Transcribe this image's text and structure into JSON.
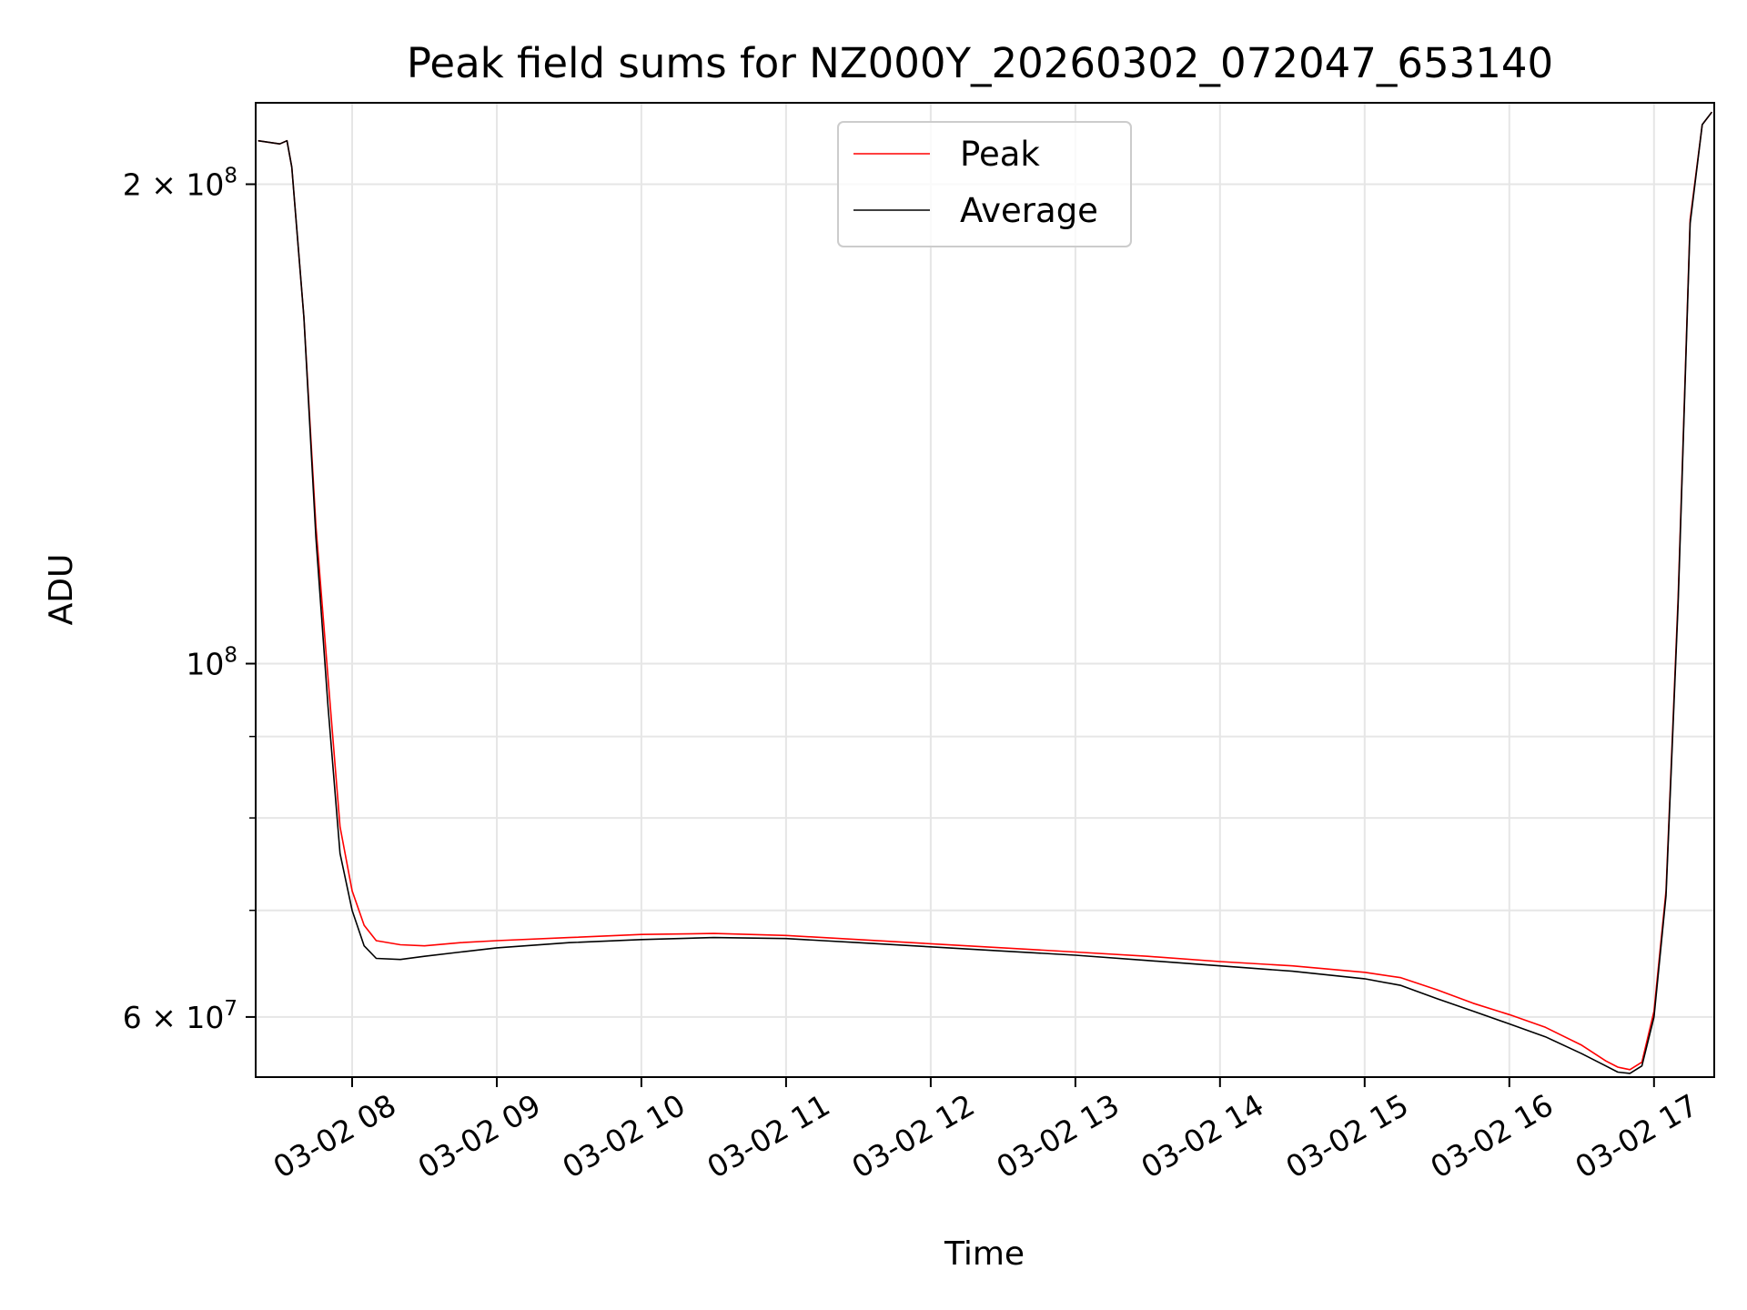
{
  "chart_data": {
    "type": "line",
    "title": "Peak field sums for NZ000Y_20260302_072047_653140",
    "xlabel": "Time",
    "ylabel": "ADU",
    "yscale": "log",
    "xlim": [
      "2026-03-02 07:20",
      "2026-03-02 17:25"
    ],
    "ylim": [
      55000000,
      225000000
    ],
    "grid": true,
    "legend_position": "top-center",
    "x_ticks": [
      {
        "value": "2026-03-02 08:00",
        "label": "03-02 08"
      },
      {
        "value": "2026-03-02 09:00",
        "label": "03-02 09"
      },
      {
        "value": "2026-03-02 10:00",
        "label": "03-02 10"
      },
      {
        "value": "2026-03-02 11:00",
        "label": "03-02 11"
      },
      {
        "value": "2026-03-02 12:00",
        "label": "03-02 12"
      },
      {
        "value": "2026-03-02 13:00",
        "label": "03-02 13"
      },
      {
        "value": "2026-03-02 14:00",
        "label": "03-02 14"
      },
      {
        "value": "2026-03-02 15:00",
        "label": "03-02 15"
      },
      {
        "value": "2026-03-02 16:00",
        "label": "03-02 16"
      },
      {
        "value": "2026-03-02 17:00",
        "label": "03-02 17"
      }
    ],
    "y_ticks": [
      {
        "value": 60000000,
        "base": "6 × 10",
        "exp": "7"
      },
      {
        "value": 100000000,
        "base": "10",
        "exp": "8"
      },
      {
        "value": 200000000,
        "base": "2 × 10",
        "exp": "8"
      }
    ],
    "y_minor_ticks": [
      70000000,
      80000000,
      90000000
    ],
    "series": [
      {
        "name": "Peak",
        "color": "#ff0000",
        "x": [
          "2026-03-02 07:21",
          "2026-03-02 07:30",
          "2026-03-02 07:33",
          "2026-03-02 07:35",
          "2026-03-02 07:40",
          "2026-03-02 07:45",
          "2026-03-02 07:50",
          "2026-03-02 07:55",
          "2026-03-02 08:00",
          "2026-03-02 08:05",
          "2026-03-02 08:10",
          "2026-03-02 08:20",
          "2026-03-02 08:30",
          "2026-03-02 08:45",
          "2026-03-02 09:00",
          "2026-03-02 09:30",
          "2026-03-02 10:00",
          "2026-03-02 10:30",
          "2026-03-02 11:00",
          "2026-03-02 11:30",
          "2026-03-02 12:00",
          "2026-03-02 12:30",
          "2026-03-02 13:00",
          "2026-03-02 13:30",
          "2026-03-02 14:00",
          "2026-03-02 14:30",
          "2026-03-02 15:00",
          "2026-03-02 15:15",
          "2026-03-02 15:30",
          "2026-03-02 15:45",
          "2026-03-02 16:00",
          "2026-03-02 16:15",
          "2026-03-02 16:30",
          "2026-03-02 16:40",
          "2026-03-02 16:45",
          "2026-03-02 16:50",
          "2026-03-02 16:55",
          "2026-03-02 17:00",
          "2026-03-02 17:05",
          "2026-03-02 17:10",
          "2026-03-02 17:15",
          "2026-03-02 17:20",
          "2026-03-02 17:24"
        ],
        "values": [
          213000000,
          212000000,
          213000000,
          205000000,
          165000000,
          122000000,
          98000000,
          79000000,
          72000000,
          68500000,
          67000000,
          66600000,
          66500000,
          66800000,
          67000000,
          67300000,
          67600000,
          67700000,
          67500000,
          67100000,
          66700000,
          66300000,
          65900000,
          65500000,
          65000000,
          64600000,
          64000000,
          63500000,
          62400000,
          61200000,
          60200000,
          59100000,
          57600000,
          56300000,
          55800000,
          55600000,
          56200000,
          60500000,
          72000000,
          110000000,
          190000000,
          218000000,
          222000000
        ]
      },
      {
        "name": "Average",
        "color": "#000000",
        "x": [
          "2026-03-02 07:21",
          "2026-03-02 07:30",
          "2026-03-02 07:33",
          "2026-03-02 07:35",
          "2026-03-02 07:40",
          "2026-03-02 07:45",
          "2026-03-02 07:50",
          "2026-03-02 07:55",
          "2026-03-02 08:00",
          "2026-03-02 08:05",
          "2026-03-02 08:10",
          "2026-03-02 08:20",
          "2026-03-02 08:30",
          "2026-03-02 08:45",
          "2026-03-02 09:00",
          "2026-03-02 09:30",
          "2026-03-02 10:00",
          "2026-03-02 10:30",
          "2026-03-02 11:00",
          "2026-03-02 11:30",
          "2026-03-02 12:00",
          "2026-03-02 12:30",
          "2026-03-02 13:00",
          "2026-03-02 13:30",
          "2026-03-02 14:00",
          "2026-03-02 14:30",
          "2026-03-02 15:00",
          "2026-03-02 15:15",
          "2026-03-02 15:30",
          "2026-03-02 15:45",
          "2026-03-02 16:00",
          "2026-03-02 16:15",
          "2026-03-02 16:30",
          "2026-03-02 16:40",
          "2026-03-02 16:45",
          "2026-03-02 16:50",
          "2026-03-02 16:55",
          "2026-03-02 17:00",
          "2026-03-02 17:05",
          "2026-03-02 17:10",
          "2026-03-02 17:15",
          "2026-03-02 17:20",
          "2026-03-02 17:24"
        ],
        "values": [
          213000000,
          212000000,
          213000000,
          205000000,
          165000000,
          120000000,
          94000000,
          76000000,
          70000000,
          66500000,
          65300000,
          65200000,
          65500000,
          65900000,
          66300000,
          66800000,
          67100000,
          67300000,
          67200000,
          66800000,
          66400000,
          66000000,
          65600000,
          65100000,
          64600000,
          64100000,
          63400000,
          62800000,
          61600000,
          60500000,
          59400000,
          58300000,
          56900000,
          55900000,
          55400000,
          55300000,
          55900000,
          60000000,
          71500000,
          109000000,
          189000000,
          218000000,
          222000000
        ]
      }
    ]
  }
}
